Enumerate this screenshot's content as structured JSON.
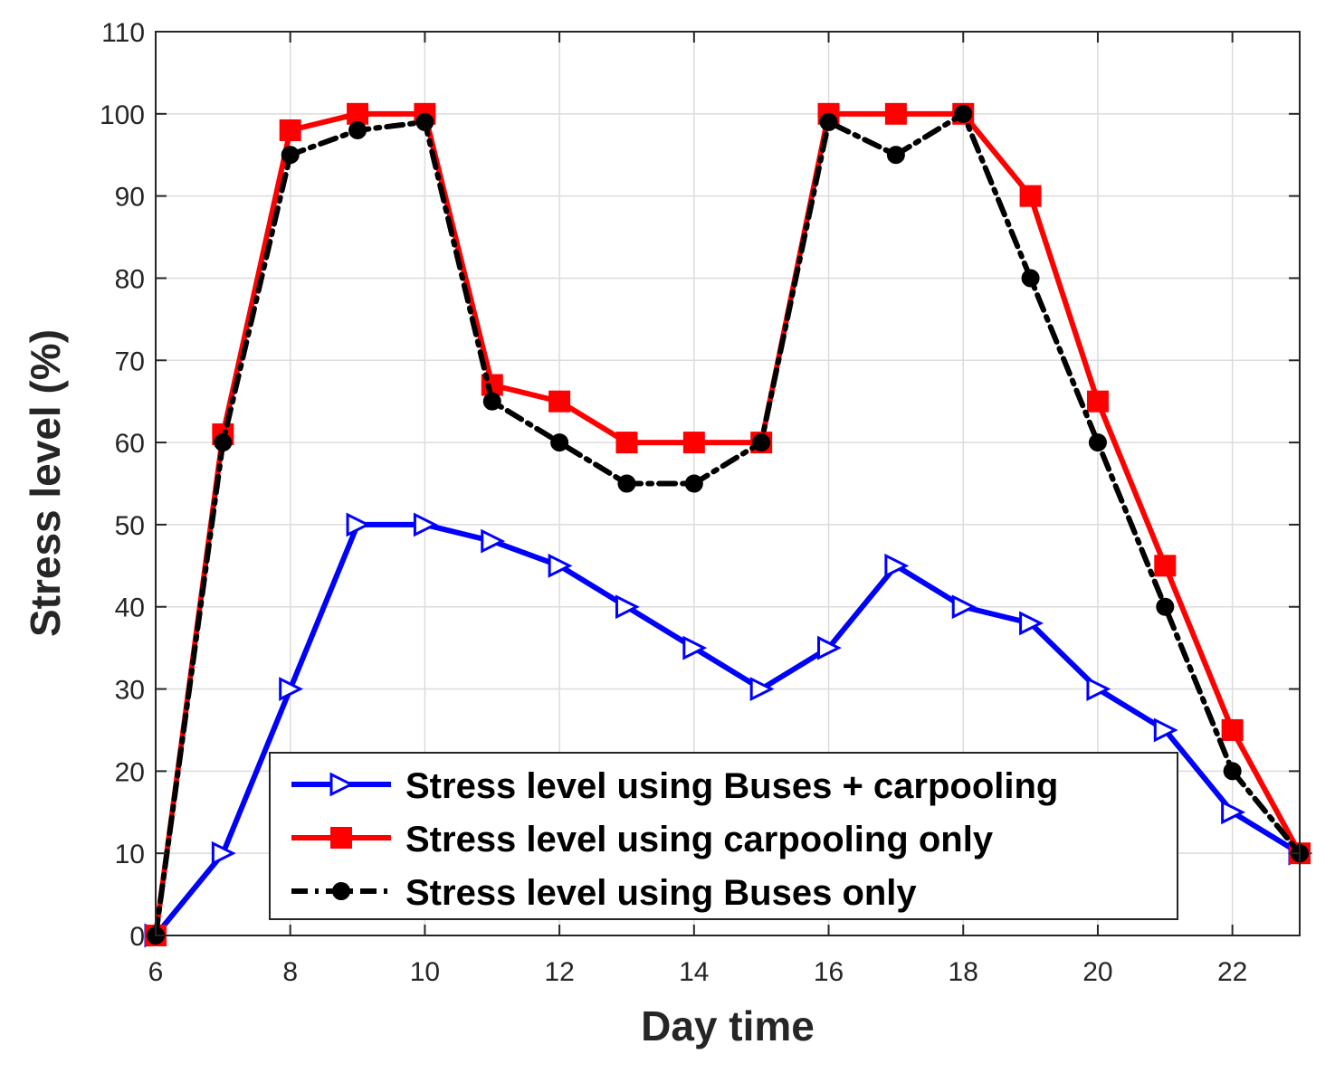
{
  "chart_data": {
    "type": "line",
    "title": "",
    "xlabel": "Day time",
    "ylabel": "Stress level (%)",
    "xlim": [
      6,
      23
    ],
    "ylim": [
      0,
      110
    ],
    "xticks": [
      6,
      8,
      10,
      12,
      14,
      16,
      18,
      20,
      22
    ],
    "yticks": [
      0,
      10,
      20,
      30,
      40,
      50,
      60,
      70,
      80,
      90,
      100,
      110
    ],
    "grid": true,
    "legend_position": "bottom-right",
    "x": [
      6,
      7,
      8,
      9,
      10,
      11,
      12,
      13,
      14,
      15,
      16,
      17,
      18,
      19,
      20,
      21,
      22,
      23
    ],
    "series": [
      {
        "name": "Stress level using Buses + carpooling",
        "color": "#0000ff",
        "marker": "triangle-right",
        "dash": "solid",
        "values": [
          0,
          10,
          30,
          50,
          50,
          48,
          45,
          40,
          35,
          30,
          35,
          45,
          40,
          38,
          30,
          25,
          15,
          10
        ]
      },
      {
        "name": "Stress level using carpooling only",
        "color": "#ff0000",
        "marker": "square",
        "dash": "solid",
        "values": [
          0,
          61,
          98,
          100,
          100,
          67,
          65,
          60,
          60,
          60,
          100,
          100,
          100,
          90,
          65,
          45,
          25,
          10
        ]
      },
      {
        "name": "Stress level using Buses only",
        "color": "#000000",
        "marker": "circle",
        "dash": "dashdot",
        "values": [
          0,
          60,
          95,
          98,
          99,
          65,
          60,
          55,
          55,
          60,
          99,
          95,
          100,
          80,
          60,
          40,
          20,
          10
        ]
      }
    ]
  }
}
